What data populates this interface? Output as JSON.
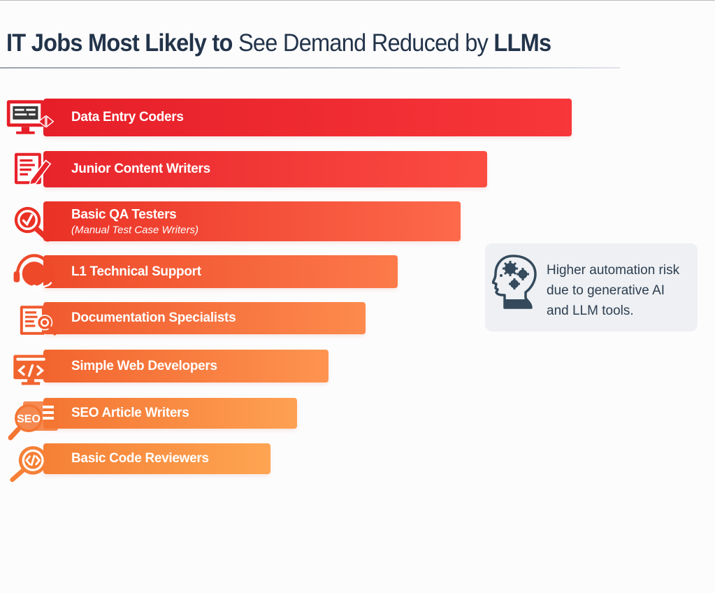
{
  "chart_data": {
    "type": "bar",
    "orientation": "horizontal",
    "title": "IT Jobs Most Likely to See Demand Reduced by LLMs",
    "title_parts": [
      {
        "text": "IT Jobs Most Likely to ",
        "weight": "bold"
      },
      {
        "text": "See Demand Reduced by ",
        "weight": "normal"
      },
      {
        "text": "LLMs",
        "weight": "bold"
      }
    ],
    "xlabel": "",
    "ylabel": "",
    "axis_visible": false,
    "grid": false,
    "value_scale_note": "Relative bar length (unlabeled; estimated relative demand-reduction risk, 100 = longest bar)",
    "xlim": [
      0,
      100
    ],
    "categories": [
      {
        "label": "Data Entry Coders",
        "sublabel": "",
        "icon": "monitor-code-icon",
        "value": 100,
        "color_start": "#e61e28",
        "color_end": "#f7373a"
      },
      {
        "label": "Junior Content Writers",
        "sublabel": "",
        "icon": "document-pencil-icon",
        "value": 84,
        "color_start": "#e8232b",
        "color_end": "#fb4d42"
      },
      {
        "label": "Basic QA Testers",
        "sublabel": "(Manual Test Case Writers)",
        "icon": "magnifier-check-icon",
        "value": 79,
        "color_start": "#ea3126",
        "color_end": "#fd6a4a"
      },
      {
        "label": "L1 Technical Support",
        "sublabel": "",
        "icon": "headset-icon",
        "value": 67,
        "color_start": "#ee4a2a",
        "color_end": "#fc7a4a"
      },
      {
        "label": "Documentation Specialists",
        "sublabel": "",
        "icon": "document-search-icon",
        "value": 61,
        "color_start": "#f05a2e",
        "color_end": "#fd8a4d"
      },
      {
        "label": "Simple Web Developers",
        "sublabel": "",
        "icon": "web-code-icon",
        "value": 54,
        "color_start": "#f2642e",
        "color_end": "#fe9450"
      },
      {
        "label": "SEO Article Writers",
        "sublabel": "",
        "icon": "seo-magnifier-icon",
        "value": 48,
        "color_start": "#f47532",
        "color_end": "#fea052"
      },
      {
        "label": "Basic Code Reviewers",
        "sublabel": "",
        "icon": "code-magnifier-icon",
        "value": 43,
        "color_start": "#f58036",
        "color_end": "#fea552"
      }
    ],
    "legend": {
      "placement": "right",
      "icon": "head-gears-icon",
      "lines": [
        "Higher automation risk",
        "due to generative AI",
        "and LLM tools."
      ]
    }
  }
}
